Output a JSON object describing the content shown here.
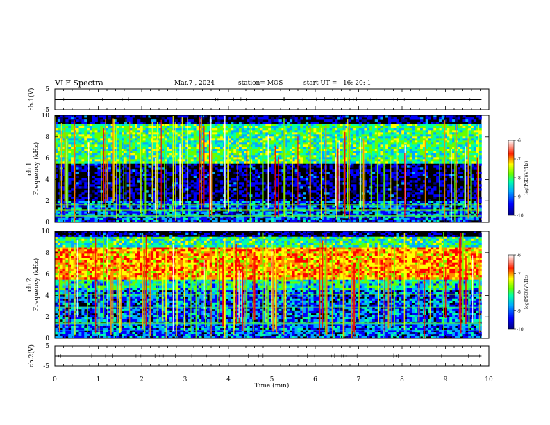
{
  "header": {
    "title": "VLF Spectra",
    "date": "Mar.7 , 2024",
    "station": "station= MOS",
    "start_ut": "start UT =   16: 20: 1"
  },
  "chart_data": [
    {
      "type": "line",
      "name": "waveform-ch1",
      "ylabel": "ch.1(V)",
      "ylim": [
        -5,
        5
      ],
      "yticks": [
        "5",
        "-5"
      ],
      "series": [
        {
          "x": [
            0,
            9.83
          ],
          "y": [
            0,
            0
          ]
        }
      ]
    },
    {
      "type": "heatmap",
      "name": "spectrogram-ch1",
      "ylabel": "ch.1\nFrequency (kHz)",
      "ylim": [
        0,
        10
      ],
      "yticks": [
        "0",
        "2",
        "4",
        "6",
        "8",
        "10"
      ],
      "colorbar": {
        "label": "log(PSD)(V²/Hz)",
        "range": [
          -10,
          -6
        ],
        "ticks": [
          "-6",
          "-7",
          "-8",
          "-9",
          "-10"
        ]
      },
      "bands": [
        {
          "from_khz": 0,
          "to_khz": 2,
          "level": -9.3
        },
        {
          "from_khz": 2,
          "to_khz": 5.5,
          "level": -10
        },
        {
          "from_khz": 5.5,
          "to_khz": 9.2,
          "level": -8.3
        },
        {
          "from_khz": 9.2,
          "to_khz": 10,
          "level": -10
        }
      ]
    },
    {
      "type": "heatmap",
      "name": "spectrogram-ch2",
      "ylabel": "ch.2\nFrequency (kHz)",
      "ylim": [
        0,
        10
      ],
      "yticks": [
        "0",
        "2",
        "4",
        "6",
        "8",
        "10"
      ],
      "colorbar": {
        "label": "log(PSD)(V²/Hz)",
        "range": [
          -10,
          -6
        ],
        "ticks": [
          "-6",
          "-7",
          "-8",
          "-9",
          "-10"
        ]
      },
      "bands": [
        {
          "from_khz": 0,
          "to_khz": 4.5,
          "level": -9.3
        },
        {
          "from_khz": 4.5,
          "to_khz": 5.5,
          "level": -8.6
        },
        {
          "from_khz": 5.5,
          "to_khz": 8.5,
          "level": -7.1
        },
        {
          "from_khz": 8.5,
          "to_khz": 9.5,
          "level": -8.4
        },
        {
          "from_khz": 9.5,
          "to_khz": 10,
          "level": -10
        }
      ]
    },
    {
      "type": "line",
      "name": "waveform-ch2",
      "ylabel": "ch.2(V)",
      "ylim": [
        -5,
        5
      ],
      "yticks": [
        "5",
        "-5"
      ],
      "series": [
        {
          "x": [
            0,
            9.83
          ],
          "y": [
            0,
            0
          ]
        }
      ]
    }
  ],
  "xaxis": {
    "label": "Time (min)",
    "xlim": [
      0,
      10
    ],
    "ticks": [
      "0",
      "1",
      "2",
      "3",
      "4",
      "5",
      "6",
      "7",
      "8",
      "9",
      "10"
    ],
    "data_end": 9.83
  },
  "colors": {
    "scale": [
      "#000080",
      "#0000ff",
      "#00aaff",
      "#00ffaa",
      "#66ff00",
      "#ffff00",
      "#ff8800",
      "#ff0000",
      "#ffffff"
    ],
    "background": "#000000"
  }
}
